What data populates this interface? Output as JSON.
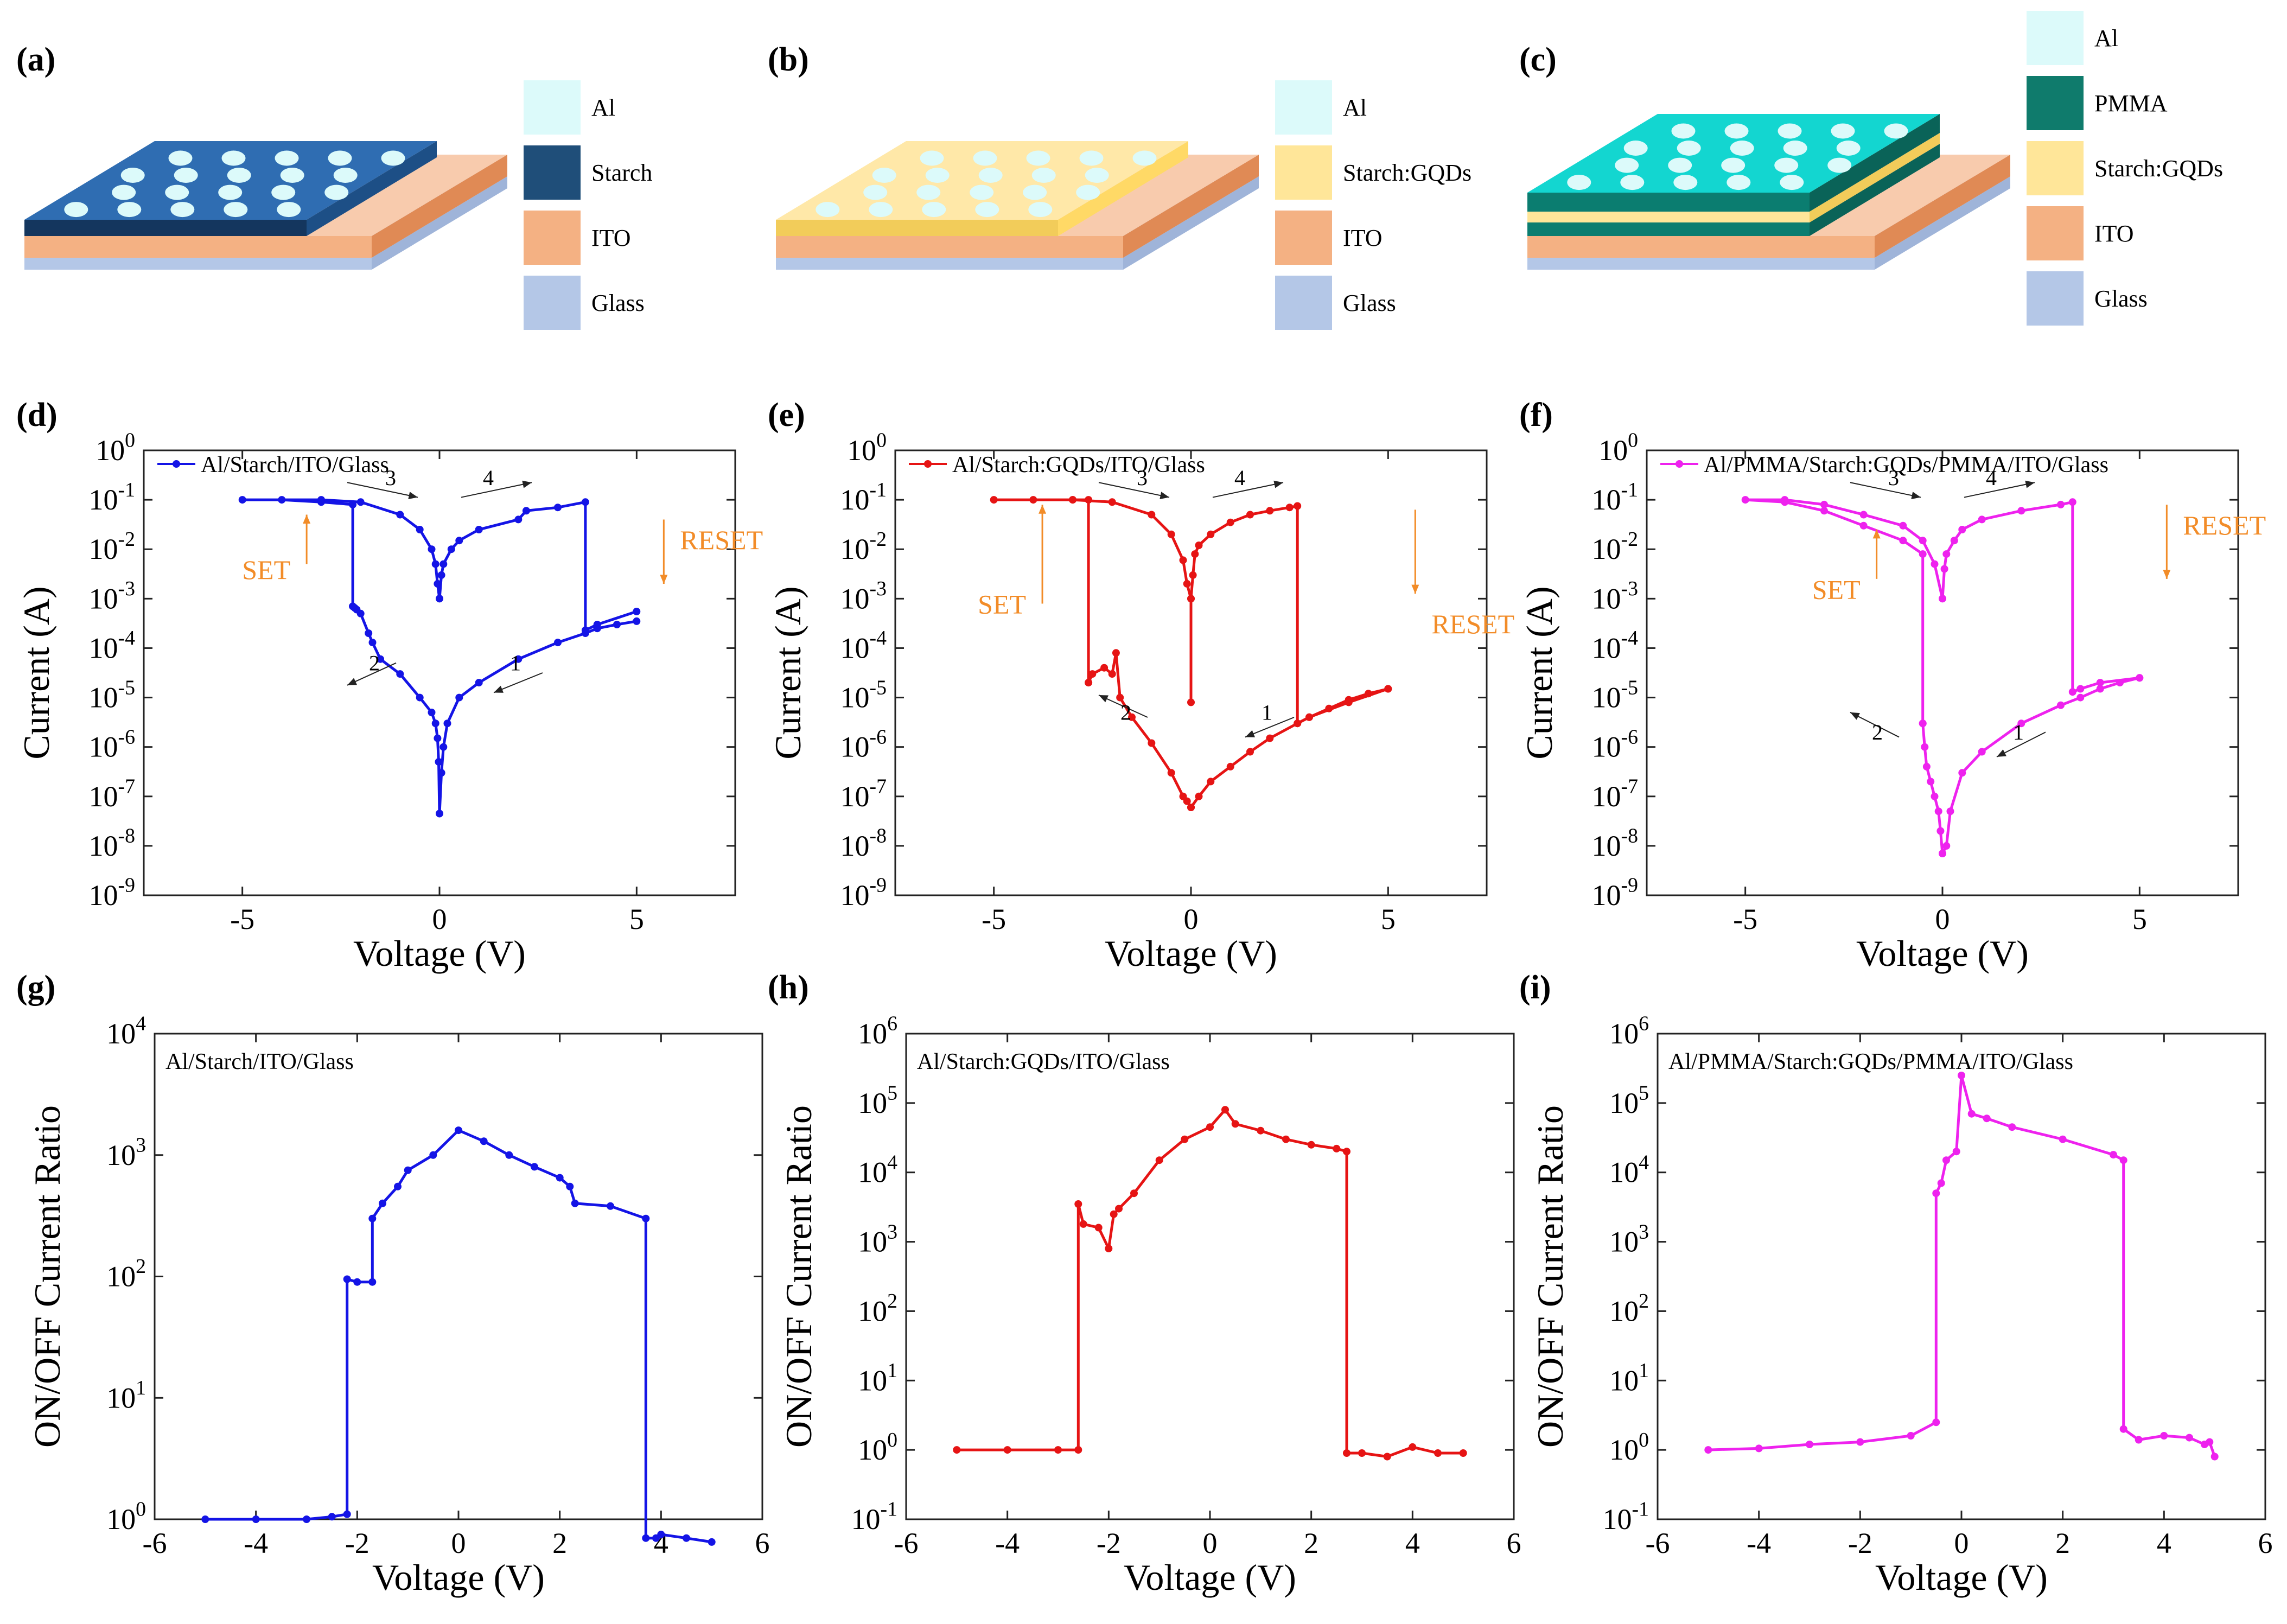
{
  "colors": {
    "blue": "#1414e6",
    "red": "#e61414",
    "magenta": "#ee22ee",
    "orange": "#f28c28",
    "black": "#222222"
  },
  "schematics": [
    {
      "panel": "(a)",
      "top_color": "#2f6db2",
      "side_color": "#1d4f86",
      "edge_color": "#14365e",
      "legend": [
        {
          "label": "Al",
          "color": "#dcfafa"
        },
        {
          "label": "Starch",
          "color": "#1f4e79"
        },
        {
          "label": "ITO",
          "color": "#f4b183"
        },
        {
          "label": "Glass",
          "color": "#b4c7e7"
        }
      ]
    },
    {
      "panel": "(b)",
      "top_color": "#ffe8a8",
      "side_color": "#ffd966",
      "edge_color": "#f2cc5a",
      "legend": [
        {
          "label": "Al",
          "color": "#dcfafa"
        },
        {
          "label": "Starch:GQDs",
          "color": "#ffe699"
        },
        {
          "label": "ITO",
          "color": "#f4b183"
        },
        {
          "label": "Glass",
          "color": "#b4c7e7"
        }
      ]
    },
    {
      "panel": "(c)",
      "top_color": "#13d6d0",
      "side_color": "#0b7d70",
      "edge_color": "#0a6358",
      "legend": [
        {
          "label": "Al",
          "color": "#dcfafa"
        },
        {
          "label": "PMMA",
          "color": "#0f7b6c"
        },
        {
          "label": "Starch:GQDs",
          "color": "#ffe699"
        },
        {
          "label": "ITO",
          "color": "#f4b183"
        },
        {
          "label": "Glass",
          "color": "#b4c7e7"
        }
      ]
    }
  ],
  "chart_data": [
    {
      "panel": "(d)",
      "type": "line",
      "yscale": "log",
      "xlim": [
        -7.5,
        7.5
      ],
      "ylim_exp": [
        -9,
        0
      ],
      "xticks": [
        -5,
        0,
        5
      ],
      "xlabel": "Voltage (V)",
      "ylabel": "Current (A)",
      "legend": "Al/Starch/ITO/Glass",
      "color_key": "blue",
      "series": [
        {
          "name": "sweep 1",
          "x": [
            5,
            4.5,
            4,
            3.7,
            3,
            2,
            1,
            0.5,
            0.2,
            0.1,
            0.05,
            0
          ],
          "y": [
            0.00035,
            0.0003,
            0.00025,
            0.0002,
            0.00013,
            6e-05,
            2e-05,
            1e-05,
            3e-06,
            1e-06,
            3e-07,
            4.5e-08
          ]
        },
        {
          "name": "sweep 2",
          "x": [
            0,
            -0.02,
            -0.05,
            -0.1,
            -0.2,
            -0.5,
            -1,
            -1.5,
            -1.7,
            -1.8,
            -2,
            -2.1,
            -2.15,
            -2.2
          ],
          "y": [
            4.5e-08,
            5e-07,
            1.5e-06,
            3e-06,
            5e-06,
            1e-05,
            3e-05,
            6e-05,
            0.00013,
            0.0002,
            0.0005,
            0.0006,
            0.00065,
            0.0007
          ]
        },
        {
          "name": "sweep 3",
          "x": [
            -2.2,
            -2.2,
            -3,
            -4,
            -5,
            -3,
            -2,
            -1,
            -0.5,
            -0.2,
            -0.1,
            -0.05,
            0
          ],
          "y": [
            0.0007,
            0.08,
            0.09,
            0.1,
            0.1,
            0.1,
            0.09,
            0.05,
            0.025,
            0.01,
            0.005,
            0.002,
            0.001
          ]
        },
        {
          "name": "sweep 4",
          "x": [
            0,
            0.05,
            0.1,
            0.3,
            0.5,
            1,
            2,
            2.2,
            3,
            3.7,
            3.7,
            4,
            5
          ],
          "y": [
            0.001,
            0.003,
            0.005,
            0.01,
            0.015,
            0.025,
            0.04,
            0.06,
            0.07,
            0.09,
            0.00023,
            0.0003,
            0.00055
          ]
        }
      ],
      "annotations": {
        "set": "SET",
        "reset": "RESET",
        "n1": "1",
        "n2": "2",
        "n3": "3",
        "n4": "4"
      },
      "arrow_exp": {
        "set": [
          -2.3,
          -1.3
        ],
        "reset": [
          -1.4,
          -2.7
        ],
        "n1": [
          -4.5,
          -4.9
        ],
        "n2": [
          -4.3,
          -4.75
        ],
        "n3": [
          -0.65,
          -0.95
        ],
        "n4": [
          -0.95,
          -0.65
        ]
      },
      "label_exp": {
        "set": -2.6,
        "reset": -2.0,
        "n1": -4.45,
        "n2": -4.45,
        "n3": -0.7,
        "n4": -0.7
      }
    },
    {
      "panel": "(e)",
      "type": "line",
      "yscale": "log",
      "xlim": [
        -7.5,
        7.5
      ],
      "ylim_exp": [
        -9,
        0
      ],
      "xticks": [
        -5,
        0,
        5
      ],
      "xlabel": "Voltage (V)",
      "ylabel": "Current (A)",
      "legend": "Al/Starch:GQDs/ITO/Glass",
      "color_key": "red",
      "series": [
        {
          "name": "sweep 1",
          "x": [
            5,
            4.5,
            4,
            3.5,
            3,
            2.7,
            2,
            1.5,
            1,
            0.5,
            0.2,
            0
          ],
          "y": [
            1.5e-05,
            1.2e-05,
            9e-06,
            6e-06,
            4e-06,
            3e-06,
            1.5e-06,
            8e-07,
            4e-07,
            2e-07,
            1e-07,
            6e-08
          ]
        },
        {
          "name": "sweep 2",
          "x": [
            0,
            -0.1,
            -0.2,
            -0.5,
            -1,
            -1.5,
            -1.8,
            -1.9,
            -2,
            -2.2,
            -2.5,
            -2.6
          ],
          "y": [
            6e-08,
            8e-08,
            1e-07,
            3e-07,
            1.2e-06,
            4e-06,
            1e-05,
            8e-05,
            3e-05,
            4e-05,
            3e-05,
            2e-05
          ]
        },
        {
          "name": "sweep 3",
          "x": [
            -2.6,
            -2.6,
            -3,
            -4,
            -5,
            -3,
            -2,
            -1,
            -0.5,
            -0.2,
            -0.1,
            0
          ],
          "y": [
            2e-05,
            0.1,
            0.1,
            0.1,
            0.1,
            0.1,
            0.09,
            0.05,
            0.02,
            0.006,
            0.002,
            0.001
          ]
        },
        {
          "name": "sweep 4",
          "x": [
            0,
            0,
            0.05,
            0.1,
            0.2,
            0.5,
            1,
            1.5,
            2,
            2.5,
            2.7,
            2.7,
            3,
            4,
            5
          ],
          "y": [
            8e-06,
            0.001,
            0.003,
            0.008,
            0.012,
            0.02,
            0.035,
            0.05,
            0.06,
            0.07,
            0.075,
            3e-06,
            4e-06,
            8e-06,
            1.5e-05
          ]
        }
      ],
      "annotations": {
        "set": "SET",
        "reset": "RESET",
        "n1": "1",
        "n2": "2",
        "n3": "3",
        "n4": "4"
      },
      "arrow_exp": {
        "set": [
          -3.1,
          -1.1
        ],
        "reset": [
          -1.2,
          -2.9
        ],
        "n1": [
          -5.4,
          -5.8
        ],
        "n2": [
          -5.4,
          -4.95
        ],
        "n3": [
          -0.65,
          -0.95
        ],
        "n4": [
          -0.95,
          -0.65
        ]
      },
      "label_exp": {
        "set": -3.3,
        "reset": -3.7,
        "n1": -5.45,
        "n2": -5.45,
        "n3": -0.7,
        "n4": -0.7
      }
    },
    {
      "panel": "(f)",
      "type": "line",
      "yscale": "log",
      "xlim": [
        -7.5,
        7.5
      ],
      "ylim_exp": [
        -9,
        0
      ],
      "xticks": [
        -5,
        0,
        5
      ],
      "xlabel": "Voltage (V)",
      "ylabel": "Current (A)",
      "legend": "Al/PMMA/Starch:GQDs/PMMA/ITO/Glass",
      "color_key": "magenta",
      "series": [
        {
          "name": "sweep 1",
          "x": [
            5,
            4.5,
            4,
            3.5,
            3,
            2,
            1,
            0.5,
            0.2,
            0.1,
            0
          ],
          "y": [
            2.5e-05,
            2e-05,
            1.5e-05,
            1e-05,
            7e-06,
            3e-06,
            8e-07,
            3e-07,
            5e-08,
            1e-08,
            7e-09
          ]
        },
        {
          "name": "sweep 2",
          "x": [
            0,
            -0.05,
            -0.1,
            -0.2,
            -0.3,
            -0.4,
            -0.45,
            -0.5
          ],
          "y": [
            7e-09,
            2e-08,
            5e-08,
            1e-07,
            2e-07,
            4e-07,
            1e-06,
            3e-06
          ]
        },
        {
          "name": "sweep 3",
          "x": [
            -0.5,
            -0.5,
            -1,
            -2,
            -3,
            -4,
            -5,
            -4,
            -3,
            -2,
            -1,
            -0.5,
            -0.2,
            0
          ],
          "y": [
            3e-06,
            0.008,
            0.015,
            0.03,
            0.06,
            0.09,
            0.1,
            0.1,
            0.08,
            0.05,
            0.03,
            0.015,
            0.005,
            0.001
          ]
        },
        {
          "name": "sweep 4",
          "x": [
            0,
            0.05,
            0.1,
            0.3,
            0.5,
            1,
            2,
            3,
            3.3,
            3.3,
            3.5,
            4,
            5
          ],
          "y": [
            0.001,
            0.004,
            0.008,
            0.015,
            0.025,
            0.04,
            0.06,
            0.08,
            0.09,
            1.3e-05,
            1.5e-05,
            2e-05,
            2.5e-05
          ]
        }
      ],
      "annotations": {
        "set": "SET",
        "reset": "RESET",
        "n1": "1",
        "n2": "2",
        "n3": "3",
        "n4": "4"
      },
      "arrow_exp": {
        "set": [
          -2.6,
          -1.6
        ],
        "reset": [
          -1.1,
          -2.6
        ],
        "n1": [
          -5.7,
          -6.2
        ],
        "n2": [
          -5.8,
          -5.3
        ],
        "n3": [
          -0.65,
          -0.95
        ],
        "n4": [
          -0.95,
          -0.65
        ]
      },
      "label_exp": {
        "set": -3.0,
        "reset": -1.7,
        "n1": -5.85,
        "n2": -5.85,
        "n3": -0.7,
        "n4": -0.7
      }
    },
    {
      "panel": "(g)",
      "type": "line",
      "yscale": "log",
      "xlim": [
        -6,
        6
      ],
      "ylim_exp": [
        0,
        4
      ],
      "xticks": [
        -6,
        -4,
        -2,
        0,
        2,
        4,
        6
      ],
      "xlabel": "Voltage (V)",
      "ylabel": "ON/OFF Current Ratio",
      "legend": "Al/Starch/ITO/Glass",
      "color_key": "blue",
      "series": [
        {
          "name": "ratio",
          "x": [
            -5,
            -4,
            -3,
            -2.5,
            -2.2,
            -2.2,
            -2,
            -1.7,
            -1.7,
            -1.5,
            -1.2,
            -1,
            -0.5,
            0,
            0.5,
            1,
            1.5,
            2,
            2.2,
            2.3,
            3,
            3.7,
            3.7,
            3.9,
            4,
            4.5,
            5
          ],
          "y": [
            1,
            1,
            1,
            1.05,
            1.1,
            95,
            90,
            90,
            300,
            400,
            550,
            750,
            1000,
            1600,
            1300,
            1000,
            800,
            650,
            550,
            400,
            380,
            300,
            0.7,
            0.7,
            0.75,
            0.7,
            0.65
          ]
        }
      ]
    },
    {
      "panel": "(h)",
      "type": "line",
      "yscale": "log",
      "xlim": [
        -6,
        6
      ],
      "ylim_exp": [
        -1,
        6
      ],
      "xticks": [
        -6,
        -4,
        -2,
        0,
        2,
        4,
        6
      ],
      "xlabel": "Voltage (V)",
      "ylabel": "ON/OFF Current Ratio",
      "legend": "Al/Starch:GQDs/ITO/Glass",
      "color_key": "red",
      "series": [
        {
          "name": "ratio",
          "x": [
            -5,
            -4,
            -3,
            -2.6,
            -2.6,
            -2.5,
            -2.2,
            -2,
            -1.9,
            -1.8,
            -1.5,
            -1,
            -0.5,
            0,
            0.3,
            0.5,
            1,
            1.5,
            2,
            2.5,
            2.7,
            2.7,
            3,
            3.5,
            4,
            4.5,
            5
          ],
          "y": [
            1,
            1,
            1,
            1,
            3500,
            1800,
            1600,
            800,
            2500,
            3000,
            5000,
            15000,
            30000,
            45000,
            80000,
            50000,
            40000,
            30000,
            25000,
            22000,
            20000,
            0.9,
            0.9,
            0.8,
            1.1,
            0.9,
            0.9
          ]
        }
      ]
    },
    {
      "panel": "(i)",
      "type": "line",
      "yscale": "log",
      "xlim": [
        -6,
        6
      ],
      "ylim_exp": [
        -1,
        6
      ],
      "xticks": [
        -6,
        -4,
        -2,
        0,
        2,
        4,
        6
      ],
      "xlabel": "Voltage (V)",
      "ylabel": "ON/OFF Current Ratio",
      "legend": "Al/PMMA/Starch:GQDs/PMMA/ITO/Glass",
      "color_key": "magenta",
      "series": [
        {
          "name": "ratio",
          "x": [
            -5,
            -4,
            -3,
            -2,
            -1,
            -0.5,
            -0.5,
            -0.4,
            -0.3,
            -0.1,
            0,
            0.2,
            0.5,
            1,
            2,
            3,
            3.2,
            3.2,
            3.5,
            4,
            4.5,
            4.8,
            4.9,
            5
          ],
          "y": [
            1,
            1.05,
            1.2,
            1.3,
            1.6,
            2.5,
            5000,
            7000,
            15000,
            20000,
            250000,
            70000,
            60000,
            45000,
            30000,
            18000,
            15000,
            2,
            1.4,
            1.6,
            1.5,
            1.2,
            1.3,
            0.8
          ]
        }
      ]
    }
  ]
}
